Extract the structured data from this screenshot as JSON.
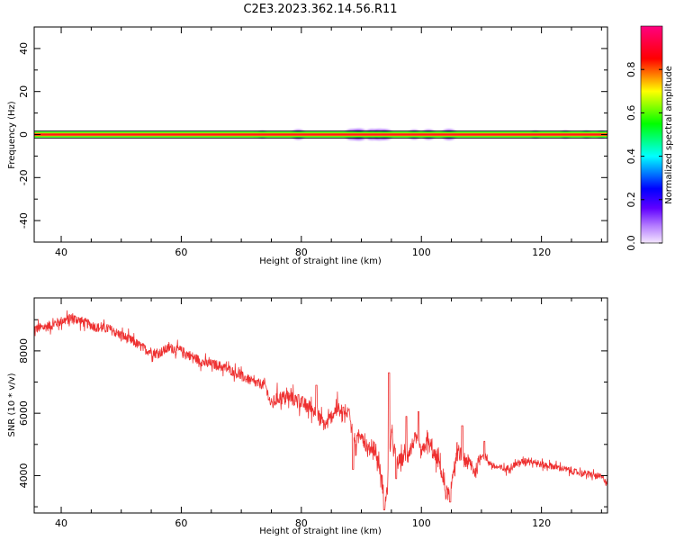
{
  "title": "C2E3.2023.362.14.56.R11",
  "colors": {
    "snr_line": "#ee3030",
    "ridge_core": "#ff1a1a",
    "ridge_band": "#00ff00",
    "axis": "#000000"
  },
  "chart_data": [
    {
      "type": "heatmap",
      "name": "spectrogram",
      "xlabel": "Height of straight line (km)",
      "ylabel": "Frequency (Hz)",
      "xlim": [
        35.5,
        131
      ],
      "ylim": [
        -50,
        50
      ],
      "xticks": [
        40,
        60,
        80,
        100,
        120
      ],
      "yticks": [
        -40,
        -20,
        0,
        20,
        40
      ],
      "colorbar": {
        "label": "Normalized spectral amplitude",
        "range": [
          0,
          1
        ],
        "ticks": [
          "0.0",
          "0.2",
          "0.4",
          "0.6",
          "0.8"
        ],
        "colormap": [
          "#f4e6ff",
          "#8000ff",
          "#0000ff",
          "#00ffff",
          "#00ff00",
          "#ffff00",
          "#ff0000",
          "#ff0080"
        ]
      },
      "ridge": {
        "frequency_hz": 0,
        "xlim": [
          35.5,
          131
        ]
      },
      "blobs": [
        {
          "x": 73.5,
          "amp": 0.12
        },
        {
          "x": 79.5,
          "amp": 0.25
        },
        {
          "x": 88.5,
          "amp": 0.3
        },
        {
          "x": 89.6,
          "amp": 0.35
        },
        {
          "x": 91.8,
          "amp": 0.3
        },
        {
          "x": 93.0,
          "amp": 0.32
        },
        {
          "x": 94.0,
          "amp": 0.28
        },
        {
          "x": 98.8,
          "amp": 0.22
        },
        {
          "x": 101.2,
          "amp": 0.25
        },
        {
          "x": 104.6,
          "amp": 0.3
        },
        {
          "x": 119.0,
          "amp": 0.12
        },
        {
          "x": 124.0,
          "amp": 0.14
        },
        {
          "x": 127.5,
          "amp": 0.12
        },
        {
          "x": 130.0,
          "amp": 0.12
        }
      ]
    },
    {
      "type": "line",
      "name": "snr",
      "xlabel": "Height of straight line (km)",
      "ylabel": "SNR (10 * v/v)",
      "xlim": [
        35.5,
        131
      ],
      "ylim": [
        2800,
        9700
      ],
      "xticks": [
        40,
        60,
        80,
        100,
        120
      ],
      "yticks": [
        4000,
        6000,
        8000
      ],
      "series": [
        {
          "x": [
            35.5,
            38,
            40,
            42,
            44,
            46,
            48,
            50,
            52,
            54,
            56,
            58,
            60,
            62,
            64,
            66,
            68,
            70,
            72,
            74,
            75,
            76,
            78,
            80,
            82,
            84,
            86,
            87,
            88,
            89,
            90,
            91,
            92,
            93,
            94,
            95,
            96,
            97,
            98,
            99,
            100,
            101,
            102,
            103,
            104,
            104.7,
            105.5,
            106,
            107,
            108,
            109,
            110,
            112,
            114,
            116,
            118,
            120,
            122,
            124,
            126,
            128,
            130,
            131
          ],
          "values": [
            8700,
            8800,
            8950,
            9050,
            8900,
            8750,
            8700,
            8500,
            8300,
            8050,
            7900,
            8100,
            8000,
            7800,
            7600,
            7550,
            7400,
            7200,
            7000,
            6900,
            6250,
            6500,
            6500,
            6350,
            6100,
            5600,
            6200,
            5800,
            6100,
            5000,
            5400,
            4800,
            4950,
            4300,
            3100,
            5300,
            4400,
            4600,
            4800,
            5200,
            4700,
            5100,
            4700,
            4400,
            3500,
            3400,
            4300,
            4700,
            4600,
            4400,
            4100,
            4700,
            4300,
            4200,
            4400,
            4500,
            4350,
            4300,
            4200,
            4100,
            4050,
            3950,
            3800
          ]
        }
      ],
      "spikes": [
        {
          "x": 79.5,
          "values": [
            6600
          ]
        },
        {
          "x": 82.5,
          "values": [
            6900
          ]
        },
        {
          "x": 87.0,
          "values": [
            6200,
            5200
          ]
        },
        {
          "x": 88.6,
          "values": [
            4200
          ]
        },
        {
          "x": 93.8,
          "values": [
            2900
          ]
        },
        {
          "x": 94.6,
          "values": [
            7300
          ]
        },
        {
          "x": 95.8,
          "values": [
            3900
          ]
        },
        {
          "x": 97.5,
          "values": [
            5900
          ]
        },
        {
          "x": 99.5,
          "values": [
            6050
          ]
        },
        {
          "x": 104.8,
          "values": [
            3150
          ]
        },
        {
          "x": 106.8,
          "values": [
            5600
          ]
        },
        {
          "x": 110.5,
          "values": [
            5100
          ]
        }
      ]
    }
  ]
}
